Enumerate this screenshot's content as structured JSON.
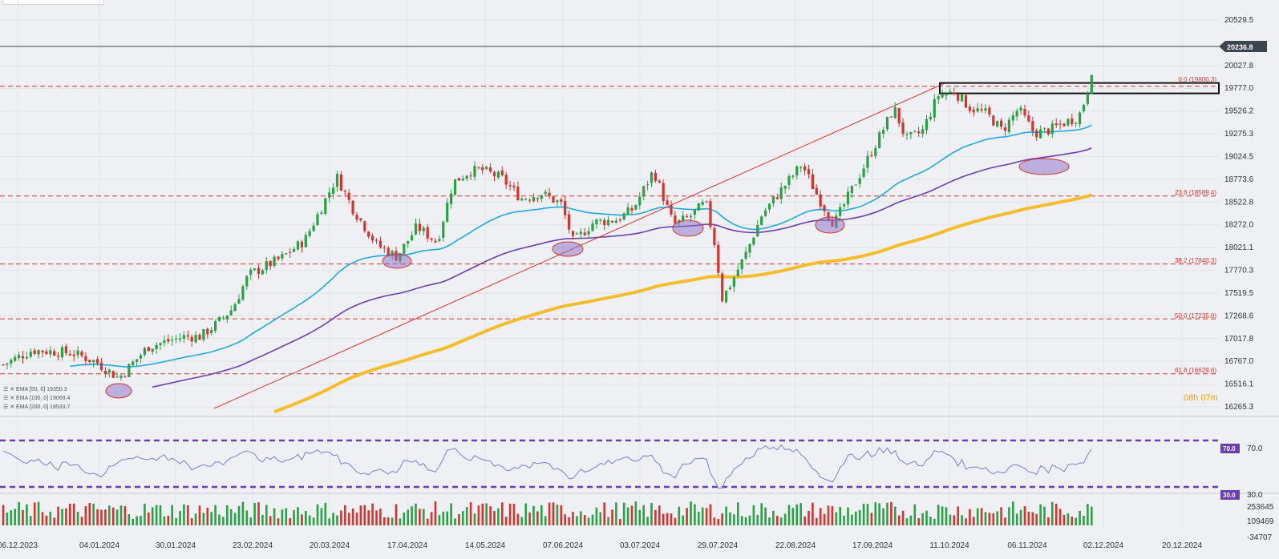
{
  "chart_data": {
    "type": "candlestick",
    "instrument_last_price": "20236.8",
    "x_axis": {
      "tick_labels": [
        "06.12.2023",
        "04.01.2024",
        "30.01.2024",
        "23.02.2024",
        "20.03.2024",
        "17.04.2024",
        "14.05.2024",
        "07.06.2024",
        "03.07.2024",
        "29.07.2024",
        "22.08.2024",
        "17.09.2024",
        "11.10.2024",
        "06.11.2024",
        "02.12.2024",
        "20.12.2024"
      ]
    },
    "price_axis": {
      "tick_labels": [
        "20529.5",
        "20236.8",
        "20027.8",
        "19777.0",
        "19526.2",
        "19275.3",
        "19024.5",
        "18773.6",
        "18522.8",
        "18272.0",
        "18021.1",
        "17770.3",
        "17519.5",
        "17268.6",
        "17017.8",
        "16767.0",
        "16516.1",
        "16265.3"
      ],
      "range": [
        16265.3,
        20529.5
      ]
    },
    "fibonacci": [
      {
        "label": "0.0 (19800.3)",
        "value": 19800.3
      },
      {
        "label": "23.6 (18589.4)",
        "value": 18589.4
      },
      {
        "label": "38.2 (17840.3)",
        "value": 17840.3
      },
      {
        "label": "50.0 (17235.0)",
        "value": 17235.0
      },
      {
        "label": "61.8 (16629.6)",
        "value": 16629.6
      }
    ],
    "ema": [
      {
        "name": "EMA [50, 0] 19350.3",
        "color": "#1fa9e1",
        "value": 19350.3
      },
      {
        "name": "EMA [100, 0] 19069.4",
        "color": "#6a3fb0",
        "value": 19069.4
      },
      {
        "name": "EMA [200, 0] 18533.7",
        "color": "#f5bd2a",
        "value": 18533.7
      }
    ],
    "timer": "08h 07m",
    "rsi": {
      "levels": [
        {
          "label": "70.0",
          "value": 70
        },
        {
          "label": "30.0",
          "value": 30
        }
      ]
    },
    "volume_axis": {
      "tick_labels": [
        "253645",
        "109469",
        "-34707"
      ]
    },
    "colors": {
      "up": "#2aa147",
      "down": "#d8322e",
      "rsi_line": "#7b7fcc",
      "level_line": "#6a3fb0",
      "tag_bg": "#6a3fb0",
      "price_tag_bg": "#3c4450"
    }
  }
}
